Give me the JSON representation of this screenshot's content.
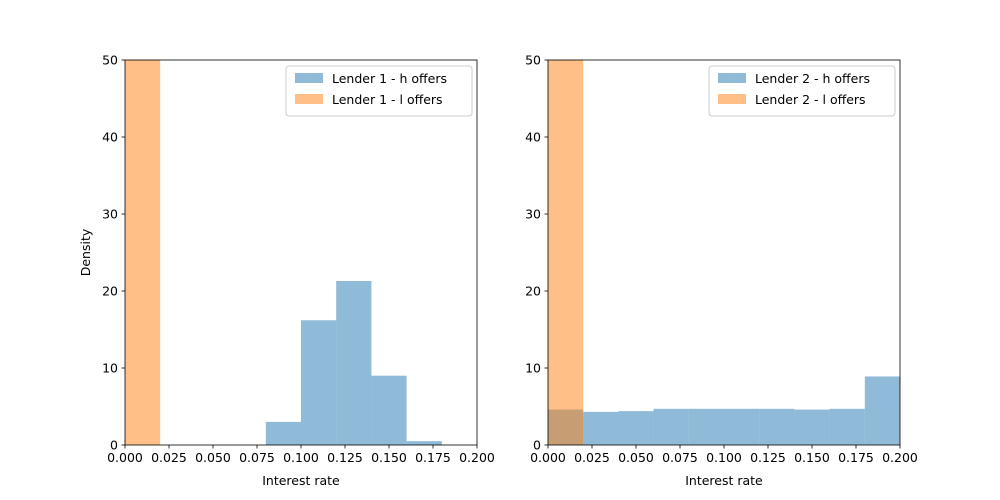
{
  "colors": {
    "h": "#1f77b4",
    "l": "#ff7f0e",
    "bar_alpha": 0.5
  },
  "chart_data": [
    {
      "type": "histogram",
      "xlabel": "Interest rate",
      "ylabel": "Density",
      "xlim": [
        0,
        0.2
      ],
      "ylim": [
        0,
        50
      ],
      "x_ticks": [
        "0.000",
        "0.025",
        "0.050",
        "0.075",
        "0.100",
        "0.125",
        "0.150",
        "0.175",
        "0.200"
      ],
      "y_ticks": [
        "0",
        "10",
        "20",
        "30",
        "40",
        "50"
      ],
      "legend_position": "top-right",
      "series": [
        {
          "name": "Lender 1 - h offers",
          "color_key": "h",
          "bins": [
            {
              "x0": 0.08,
              "x1": 0.1,
              "value": 3.0
            },
            {
              "x0": 0.1,
              "x1": 0.12,
              "value": 16.2
            },
            {
              "x0": 0.12,
              "x1": 0.14,
              "value": 21.3
            },
            {
              "x0": 0.14,
              "x1": 0.16,
              "value": 9.0
            },
            {
              "x0": 0.16,
              "x1": 0.18,
              "value": 0.5
            }
          ]
        },
        {
          "name": "Lender 1 - l offers",
          "color_key": "l",
          "bins": [
            {
              "x0": 0.0,
              "x1": 0.02,
              "value": 50
            }
          ]
        }
      ]
    },
    {
      "type": "histogram",
      "xlabel": "Interest rate",
      "ylabel": "",
      "xlim": [
        0,
        0.2
      ],
      "ylim": [
        0,
        50
      ],
      "x_ticks": [
        "0.000",
        "0.025",
        "0.050",
        "0.075",
        "0.100",
        "0.125",
        "0.150",
        "0.175",
        "0.200"
      ],
      "y_ticks": [
        "0",
        "10",
        "20",
        "30",
        "40",
        "50"
      ],
      "legend_position": "top-right",
      "series": [
        {
          "name": "Lender 2 - h offers",
          "color_key": "h",
          "bins": [
            {
              "x0": 0.0,
              "x1": 0.02,
              "value": 4.6
            },
            {
              "x0": 0.02,
              "x1": 0.04,
              "value": 4.3
            },
            {
              "x0": 0.04,
              "x1": 0.06,
              "value": 4.4
            },
            {
              "x0": 0.06,
              "x1": 0.08,
              "value": 4.7
            },
            {
              "x0": 0.08,
              "x1": 0.1,
              "value": 4.7
            },
            {
              "x0": 0.1,
              "x1": 0.12,
              "value": 4.7
            },
            {
              "x0": 0.12,
              "x1": 0.14,
              "value": 4.7
            },
            {
              "x0": 0.14,
              "x1": 0.16,
              "value": 4.6
            },
            {
              "x0": 0.16,
              "x1": 0.18,
              "value": 4.7
            },
            {
              "x0": 0.18,
              "x1": 0.2,
              "value": 8.9
            }
          ]
        },
        {
          "name": "Lender 2 - l offers",
          "color_key": "l",
          "bins": [
            {
              "x0": 0.0,
              "x1": 0.02,
              "value": 50
            }
          ]
        }
      ]
    }
  ]
}
